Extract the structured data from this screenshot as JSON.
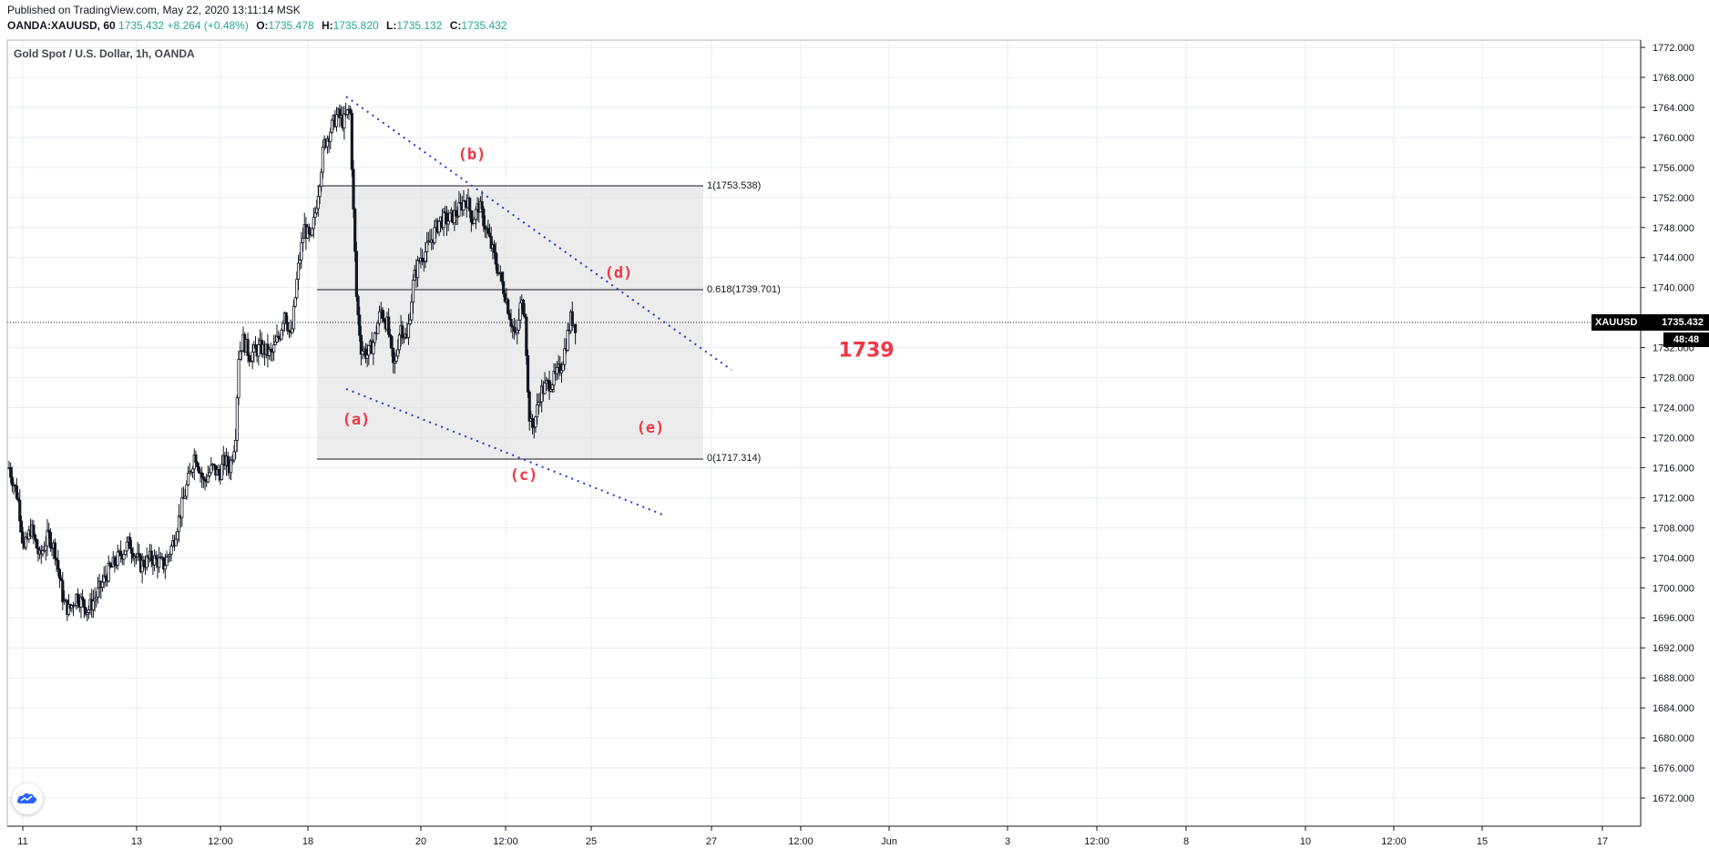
{
  "header": {
    "published": "Published on TradingView.com, May 22, 2020 13:11:14 MSK",
    "symbol_line": "OANDA:XAUUSD, 60",
    "last": "1735.432",
    "change": "+8.264 (+0.48%)",
    "open_label": "O:",
    "open": "1735.478",
    "high_label": "H:",
    "high": "1735.820",
    "low_label": "L:",
    "low": "1735.132",
    "close_label": "C:",
    "close": "1735.432"
  },
  "legend": "Gold Spot / U.S. Dollar, 1h, OANDA",
  "price_badge": {
    "symbol": "XAUUSD",
    "price": "1735.432",
    "countdown": "48:48"
  },
  "wave_labels": {
    "a": "(a)",
    "b": "(b)",
    "c": "(c)",
    "d": "(d)",
    "e": "(e)",
    "target": "1739"
  },
  "fib": {
    "level_1": "1(1753.538)",
    "level_0618": "0.618(1739.701)",
    "level_0": "0(1717.314)"
  },
  "colors": {
    "up": "#26a69a",
    "annotation": "#f23645",
    "trendline": "#2436c8",
    "candle": "#131722"
  },
  "chart_data": {
    "type": "candlestick",
    "title": "Gold Spot / U.S. Dollar, 1h, OANDA",
    "ylim": [
      1668,
      1773
    ],
    "y_ticks": [
      1772,
      1768,
      1764,
      1760,
      1756,
      1752,
      1748,
      1744,
      1740,
      1732,
      1728,
      1724,
      1720,
      1716,
      1712,
      1708,
      1704,
      1700,
      1696,
      1692,
      1688,
      1684,
      1680,
      1676,
      1672
    ],
    "x_ticks": [
      "11",
      "13",
      "12:00",
      "18",
      "20",
      "12:00",
      "25",
      "27",
      "12:00",
      "Jun",
      "3",
      "12:00",
      "8",
      "10",
      "12:00",
      "15",
      "17"
    ],
    "path_points": [
      {
        "x": 0.0,
        "y": 1716
      },
      {
        "x": 8.0,
        "y": 1712
      },
      {
        "x": 14.0,
        "y": 1705
      },
      {
        "x": 20.0,
        "y": 1708
      },
      {
        "x": 28.0,
        "y": 1704
      },
      {
        "x": 36.0,
        "y": 1707
      },
      {
        "x": 42.0,
        "y": 1705
      },
      {
        "x": 50.0,
        "y": 1698
      },
      {
        "x": 55.0,
        "y": 1697
      },
      {
        "x": 62.0,
        "y": 1699
      },
      {
        "x": 72.0,
        "y": 1697
      },
      {
        "x": 80.0,
        "y": 1699
      },
      {
        "x": 90.0,
        "y": 1702
      },
      {
        "x": 100.0,
        "y": 1704
      },
      {
        "x": 110.0,
        "y": 1706
      },
      {
        "x": 120.0,
        "y": 1703
      },
      {
        "x": 130.0,
        "y": 1704
      },
      {
        "x": 142.0,
        "y": 1703
      },
      {
        "x": 150.0,
        "y": 1706
      },
      {
        "x": 160.0,
        "y": 1712
      },
      {
        "x": 170.0,
        "y": 1718
      },
      {
        "x": 178.0,
        "y": 1714
      },
      {
        "x": 186.0,
        "y": 1716
      },
      {
        "x": 192.0,
        "y": 1715
      },
      {
        "x": 197.0,
        "y": 1717
      },
      {
        "x": 202.0,
        "y": 1716
      },
      {
        "x": 207.0,
        "y": 1720
      },
      {
        "x": 210.0,
        "y": 1731
      },
      {
        "x": 214.0,
        "y": 1733
      },
      {
        "x": 220.0,
        "y": 1731
      },
      {
        "x": 230.0,
        "y": 1732
      },
      {
        "x": 240.0,
        "y": 1731
      },
      {
        "x": 248.0,
        "y": 1734
      },
      {
        "x": 252.0,
        "y": 1737
      },
      {
        "x": 258.0,
        "y": 1733
      },
      {
        "x": 264.0,
        "y": 1742
      },
      {
        "x": 270.0,
        "y": 1748
      },
      {
        "x": 276.0,
        "y": 1746
      },
      {
        "x": 282.0,
        "y": 1752
      },
      {
        "x": 288.0,
        "y": 1759
      },
      {
        "x": 294.0,
        "y": 1761
      },
      {
        "x": 300.0,
        "y": 1763
      },
      {
        "x": 306.0,
        "y": 1762
      },
      {
        "x": 312.0,
        "y": 1764
      },
      {
        "x": 315.0,
        "y": 1750
      },
      {
        "x": 318.0,
        "y": 1738
      },
      {
        "x": 322.0,
        "y": 1732
      },
      {
        "x": 328.0,
        "y": 1731
      },
      {
        "x": 334.0,
        "y": 1733
      },
      {
        "x": 340.0,
        "y": 1737
      },
      {
        "x": 346.0,
        "y": 1735
      },
      {
        "x": 352.0,
        "y": 1729
      },
      {
        "x": 358.0,
        "y": 1735
      },
      {
        "x": 364.0,
        "y": 1733
      },
      {
        "x": 370.0,
        "y": 1741
      },
      {
        "x": 376.0,
        "y": 1744
      },
      {
        "x": 382.0,
        "y": 1745
      },
      {
        "x": 388.0,
        "y": 1747
      },
      {
        "x": 394.0,
        "y": 1749
      },
      {
        "x": 402.0,
        "y": 1749
      },
      {
        "x": 410.0,
        "y": 1750
      },
      {
        "x": 418.0,
        "y": 1752
      },
      {
        "x": 424.0,
        "y": 1749
      },
      {
        "x": 430.0,
        "y": 1751
      },
      {
        "x": 436.0,
        "y": 1748
      },
      {
        "x": 442.0,
        "y": 1745
      },
      {
        "x": 448.0,
        "y": 1742
      },
      {
        "x": 454.0,
        "y": 1739
      },
      {
        "x": 460.0,
        "y": 1735
      },
      {
        "x": 464.0,
        "y": 1733
      },
      {
        "x": 468.0,
        "y": 1738
      },
      {
        "x": 472.0,
        "y": 1737
      },
      {
        "x": 475.0,
        "y": 1724
      },
      {
        "x": 478.0,
        "y": 1721
      },
      {
        "x": 482.0,
        "y": 1723
      },
      {
        "x": 486.0,
        "y": 1726
      },
      {
        "x": 492.0,
        "y": 1727
      },
      {
        "x": 500.0,
        "y": 1728
      },
      {
        "x": 506.0,
        "y": 1730
      },
      {
        "x": 510.0,
        "y": 1733
      },
      {
        "x": 514.0,
        "y": 1736
      },
      {
        "x": 518.0,
        "y": 1735
      }
    ],
    "annotations": [
      {
        "text": "1(1753.538)",
        "price": 1753.538
      },
      {
        "text": "0.618(1739.701)",
        "price": 1739.701
      },
      {
        "text": "0(1717.314)",
        "price": 1717.314
      },
      {
        "text": "1739",
        "target": 1739
      }
    ]
  }
}
